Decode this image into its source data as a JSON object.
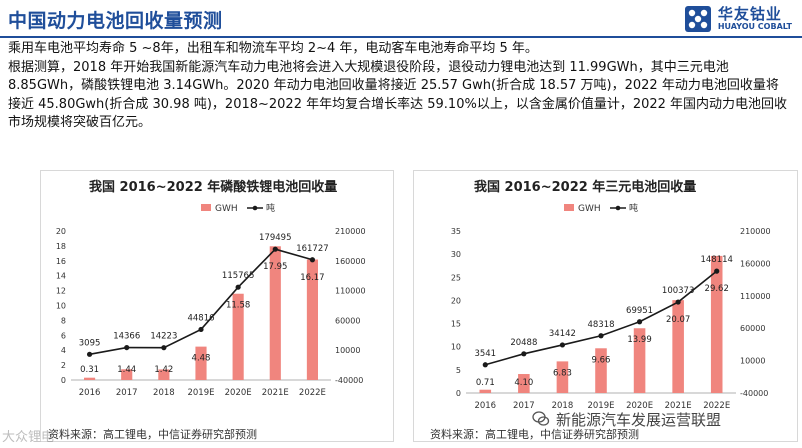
{
  "header": {
    "title": "中国动力电池回收量预测",
    "logo_cn": "华友钴业",
    "logo_en": "HUAYOU COBALT"
  },
  "body": {
    "line1": "乘用车电池平均寿命 5 ~8年，出租车和物流车平均 2~4 年，电动客车电池寿命平均 5 年。",
    "para2": "根据测算，2018 年开始我国新能源汽车动力电池将会进入大规模退役阶段，退役动力锂电池达到 11.99GWh，其中三元电池 8.85GWh，磷酸铁锂电池 3.14GWh。2020 年动力电池回收量将接近 25.57 Gwh(折合成 18.57 万吨)，2022 年动力电池回收量将接近 45.80Gwh(折合成 30.98 吨)，2018~2022 年年均复合增长率达 59.10%以上，以含金属价值量计，2022 年国内动力电池回收市场规模将突破百亿元。"
  },
  "colors": {
    "bar": "#f0857e",
    "line": "#1a1a1a",
    "accent": "#1f4e9a",
    "text": "#333333"
  },
  "chart_data": [
    {
      "type": "bar+line",
      "title": "我国 2016~2022 年磷酸铁锂电池回收量",
      "categories": [
        "2016",
        "2017",
        "2018",
        "2019E",
        "2020E",
        "2021E",
        "2022E"
      ],
      "series": [
        {
          "name": "GWH",
          "axis": "left",
          "type": "bar",
          "values": [
            0.31,
            1.44,
            1.42,
            4.48,
            11.58,
            17.95,
            16.17
          ]
        },
        {
          "name": "吨",
          "axis": "right",
          "type": "line",
          "values": [
            3095,
            14366,
            14223,
            44816,
            115765,
            179495,
            161727
          ]
        }
      ],
      "bar_labels": [
        "0.31",
        "1.44",
        "1.42",
        "4.48",
        "11.58",
        "17.95",
        "16.17"
      ],
      "line_labels": [
        "3095",
        "14366",
        "14223",
        "44816",
        "115765",
        "179495",
        "161727"
      ],
      "ylim_left": [
        0,
        20
      ],
      "yticks_left": [
        "0",
        "2",
        "4",
        "6",
        "8",
        "10",
        "12",
        "14",
        "16",
        "18",
        "20"
      ],
      "ylim_right": [
        -40000,
        210000
      ],
      "yticks_right": [
        "-40000",
        "10000",
        "60000",
        "110000",
        "160000",
        "210000"
      ],
      "legend": [
        "GWH",
        "吨"
      ],
      "source": "资料来源：高工锂电，中信证券研究部预测"
    },
    {
      "type": "bar+line",
      "title": "我国 2016~2022 年三元电池回收量",
      "categories": [
        "2016",
        "2017",
        "2018",
        "2019E",
        "2020E",
        "2021E",
        "2022E"
      ],
      "series": [
        {
          "name": "GWH",
          "axis": "left",
          "type": "bar",
          "values": [
            0.71,
            4.1,
            6.83,
            9.66,
            13.99,
            20.07,
            29.62
          ]
        },
        {
          "name": "吨",
          "axis": "right",
          "type": "line",
          "values": [
            3541,
            20488,
            34142,
            48318,
            69951,
            100373,
            148114
          ]
        }
      ],
      "bar_labels": [
        "0.71",
        "4.10",
        "6.83",
        "9.66",
        "13.99",
        "20.07",
        "29.62"
      ],
      "line_labels": [
        "3541",
        "20488",
        "34142",
        "48318",
        "69951",
        "100373",
        "148114"
      ],
      "ylim_left": [
        0,
        35
      ],
      "yticks_left": [
        "0",
        "5",
        "10",
        "15",
        "20",
        "25",
        "30",
        "35"
      ],
      "ylim_right": [
        -40000,
        210000
      ],
      "yticks_right": [
        "-40000",
        "10000",
        "60000",
        "110000",
        "160000",
        "210000"
      ],
      "legend": [
        "GWH",
        "吨"
      ],
      "source": "资料来源：高工锂电，中信证券研究部预测"
    }
  ],
  "watermarks": {
    "left_partial": "大众锂电",
    "right": "新能源汽车发展运营联盟"
  }
}
